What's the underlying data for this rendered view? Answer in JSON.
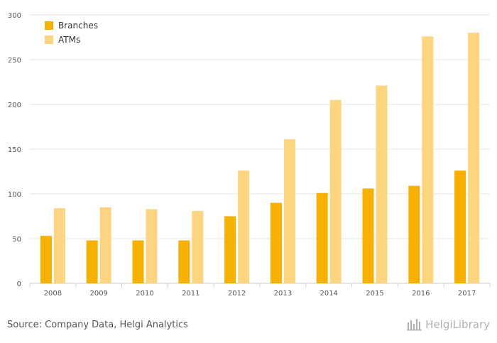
{
  "chart_data": {
    "type": "bar",
    "categories": [
      "2008",
      "2009",
      "2010",
      "2011",
      "2012",
      "2013",
      "2014",
      "2015",
      "2016",
      "2017"
    ],
    "series": [
      {
        "name": "Branches",
        "values": [
          53,
          48,
          48,
          48,
          75,
          90,
          101,
          106,
          109,
          126
        ]
      },
      {
        "name": "ATMs",
        "values": [
          84,
          85,
          83,
          81,
          126,
          161,
          205,
          221,
          276,
          280
        ]
      }
    ],
    "yticks": [
      0,
      50,
      100,
      150,
      200,
      250,
      300
    ],
    "ylim": [
      0,
      300
    ],
    "grid": true,
    "legend_position": "top-left",
    "colors": {
      "Branches": "#f5b000",
      "ATMs": "#fdd47f"
    }
  },
  "footer": {
    "source": "Source: Company Data, Helgi Analytics",
    "logo_text": "HelgiLibrary"
  }
}
